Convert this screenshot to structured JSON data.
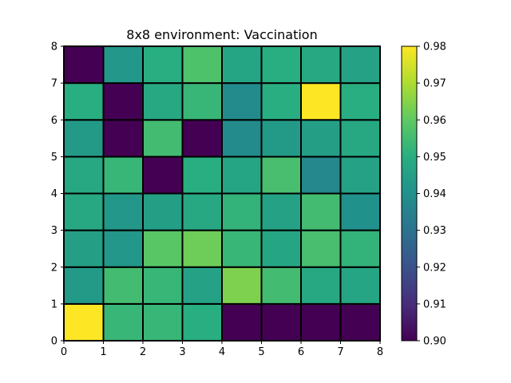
{
  "chart_data": {
    "type": "heatmap",
    "title": "8x8 environment: Vaccination",
    "xlabel": "",
    "ylabel": "",
    "xlim": [
      0,
      8
    ],
    "ylim": [
      0,
      8
    ],
    "x_ticks": [
      "0",
      "1",
      "2",
      "3",
      "4",
      "5",
      "6",
      "7",
      "8"
    ],
    "y_ticks": [
      "0",
      "1",
      "2",
      "3",
      "4",
      "5",
      "6",
      "7",
      "8"
    ],
    "rows_bottom_to_top": [
      [
        0.98,
        0.953,
        0.953,
        0.95,
        0.9,
        0.9,
        0.9,
        0.9
      ],
      [
        0.943,
        0.955,
        0.953,
        0.946,
        0.964,
        0.955,
        0.948,
        0.947
      ],
      [
        0.945,
        0.942,
        0.959,
        0.962,
        0.953,
        0.947,
        0.956,
        0.952
      ],
      [
        0.948,
        0.942,
        0.945,
        0.948,
        0.952,
        0.946,
        0.955,
        0.94
      ],
      [
        0.948,
        0.953,
        0.9,
        0.95,
        0.947,
        0.956,
        0.937,
        0.946
      ],
      [
        0.943,
        0.9,
        0.955,
        0.9,
        0.938,
        0.943,
        0.945,
        0.948
      ],
      [
        0.95,
        0.9,
        0.948,
        0.953,
        0.938,
        0.95,
        0.98,
        0.95
      ],
      [
        0.9,
        0.942,
        0.95,
        0.957,
        0.947,
        0.95,
        0.948,
        0.946
      ]
    ],
    "colormap": "viridis",
    "colorbar": {
      "range": [
        0.9,
        0.98
      ],
      "ticks": [
        "0.90",
        "0.91",
        "0.92",
        "0.93",
        "0.94",
        "0.95",
        "0.96",
        "0.97",
        "0.98"
      ]
    },
    "grid": false,
    "cell_border_color": "#000000"
  }
}
